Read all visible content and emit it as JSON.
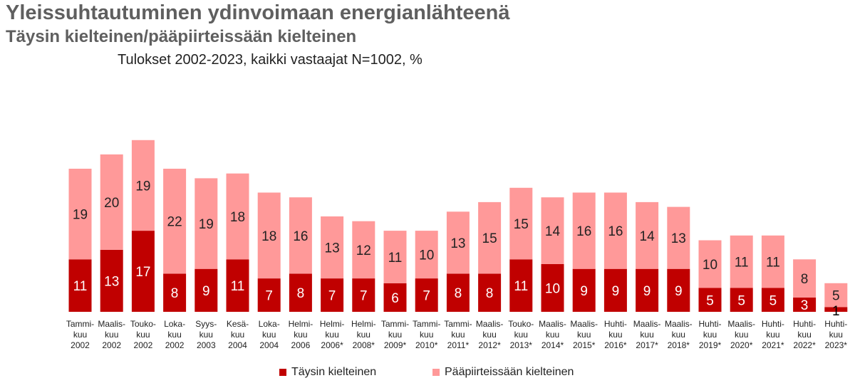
{
  "chart_data": {
    "type": "bar",
    "stacked": true,
    "title": "Yleissuhtautuminen ydinvoimaan energianlähteenä",
    "subtitle": "Täysin kielteinen/pääpiirteissään kielteinen",
    "note": "Tulokset 2002-2023, kaikki vastaajat N=1002, %",
    "categories": [
      [
        "Tammi-",
        "kuu",
        "2002"
      ],
      [
        "Maalis-",
        "kuu",
        "2002"
      ],
      [
        "Touko-",
        "kuu",
        "2002"
      ],
      [
        "Loka-",
        "kuu",
        "2002"
      ],
      [
        "Syys-",
        "kuu",
        "2003"
      ],
      [
        "Kesä-",
        "kuu",
        "2004"
      ],
      [
        "Loka-",
        "kuu",
        "2004"
      ],
      [
        "Helmi-",
        "kuu",
        "2006"
      ],
      [
        "Helmi-",
        "kuu",
        "2006*"
      ],
      [
        "Helmi-",
        "kuu",
        "2008*"
      ],
      [
        "Tammi-",
        "kuu",
        "2009*"
      ],
      [
        "Tammi-",
        "kuu",
        "2010*"
      ],
      [
        "Tammi-",
        "kuu",
        "2011*"
      ],
      [
        "Maalis-",
        "kuu",
        "2012*"
      ],
      [
        "Touko-",
        "kuu",
        "2013*"
      ],
      [
        "Maalis-",
        "kuu",
        "2014*"
      ],
      [
        "Maalis-",
        "kuu",
        "2015*"
      ],
      [
        "Huhti-",
        "kuu",
        "2016*"
      ],
      [
        "Maalis-",
        "kuu",
        "2017*"
      ],
      [
        "Maalis-",
        "kuu",
        "2018*"
      ],
      [
        "Huhti-",
        "kuu",
        "2019*"
      ],
      [
        "Maalis-",
        "kuu",
        "2020*"
      ],
      [
        "Huhti-",
        "kuu",
        "2021*"
      ],
      [
        "Huhti-",
        "kuu",
        "2022*"
      ],
      [
        "Huhti-",
        "kuu",
        "2023*"
      ]
    ],
    "series": [
      {
        "name": "Täysin kielteinen",
        "color": "#c00000",
        "values": [
          11,
          13,
          17,
          8,
          9,
          11,
          7,
          8,
          7,
          7,
          6,
          7,
          8,
          8,
          11,
          10,
          9,
          9,
          9,
          9,
          5,
          5,
          5,
          3,
          1
        ]
      },
      {
        "name": "Pääpiirteissään kielteinen",
        "color": "#ff9999",
        "values": [
          19,
          20,
          19,
          22,
          19,
          18,
          18,
          16,
          13,
          12,
          11,
          10,
          13,
          15,
          15,
          14,
          16,
          16,
          14,
          13,
          10,
          11,
          11,
          8,
          5
        ]
      }
    ],
    "legend_position": "bottom",
    "grid": false
  }
}
